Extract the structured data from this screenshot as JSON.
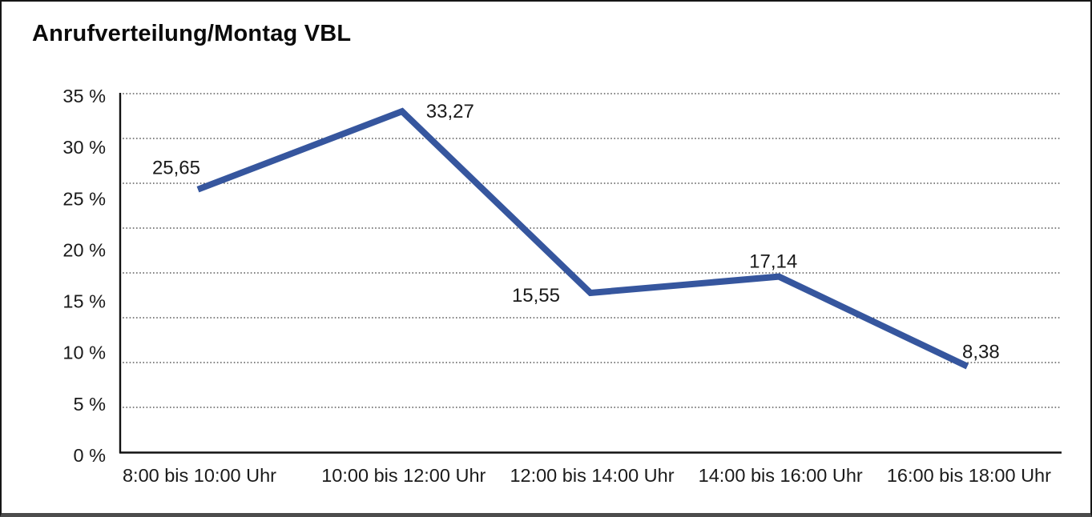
{
  "title": "Anrufverteilung/Montag VBL",
  "chart_data": {
    "type": "line",
    "title": "Anrufverteilung/Montag VBL",
    "categories": [
      "8:00 bis 10:00 Uhr",
      "10:00 bis 12:00 Uhr",
      "12:00 bis 14:00 Uhr",
      "14:00 bis 16:00 Uhr",
      "16:00 bis 18:00 Uhr"
    ],
    "values": [
      25.65,
      33.27,
      15.55,
      17.14,
      8.38
    ],
    "point_labels": [
      "25,65",
      "33,27",
      "15,55",
      "17,14",
      "8,38"
    ],
    "y_tick_labels": [
      "35 %",
      "30 %",
      "25 %",
      "20 %",
      "15 %",
      "10 %",
      "5 %",
      "0 %"
    ],
    "ylim": [
      0,
      35
    ],
    "xlabel": "",
    "ylabel": "",
    "legend_position": "none",
    "grid": "horizontal-dotted",
    "gridline_divisions": 8,
    "line_color": "#36569E",
    "axis_color": "#111111",
    "gridline_color": "#3a3a3a",
    "text_color": "#1a1a1a",
    "background_color": "#ffffff"
  }
}
